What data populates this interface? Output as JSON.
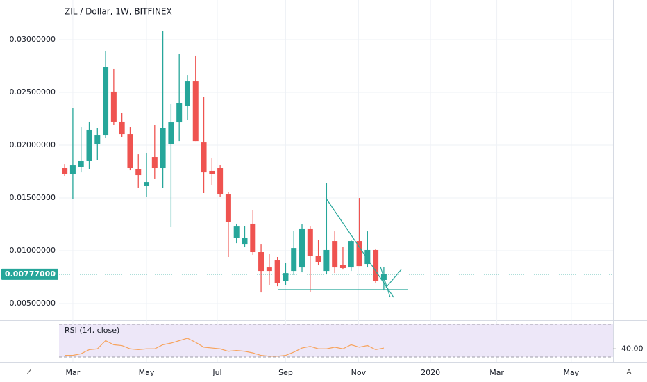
{
  "chart_data": {
    "type": "candlestick",
    "title": "ZIL / Dollar, 1W, BITFINEX",
    "up_color": "#26a69a",
    "down_color": "#ef5350",
    "grid": true,
    "xlim": [
      -7.9,
      67
    ],
    "xticks": [
      {
        "value": 1.0,
        "label": "Mar"
      },
      {
        "value": 10.0,
        "label": "May"
      },
      {
        "value": 18.65,
        "label": "Jul"
      },
      {
        "value": 27.0,
        "label": "Sep"
      },
      {
        "value": 35.9,
        "label": "Nov"
      },
      {
        "value": 44.7,
        "label": "2020"
      },
      {
        "value": 52.8,
        "label": "Mar"
      },
      {
        "value": 61.9,
        "label": "May"
      }
    ],
    "ylim": [
      0.00349,
      0.03375
    ],
    "yticks": [
      {
        "value": 0.005,
        "label": "0.00500000"
      },
      {
        "value": 0.01,
        "label": "0.01000000"
      },
      {
        "value": 0.015,
        "label": "0.01500000"
      },
      {
        "value": 0.02,
        "label": "0.02000000"
      },
      {
        "value": 0.025,
        "label": "0.02500000"
      },
      {
        "value": 0.03,
        "label": "0.03000000"
      }
    ],
    "last_price": {
      "value": 0.00777,
      "label": "0.00777000"
    },
    "open": [
      0.01783,
      0.0173,
      0.01796,
      0.01849,
      0.02007,
      0.02092,
      0.02507,
      0.02224,
      0.02105,
      0.0177,
      0.01612,
      0.01888,
      0.01783,
      0.02007,
      0.02217,
      0.02375,
      0.02605,
      0.02026,
      0.01757,
      0.01783,
      0.01533,
      0.01125,
      0.01059,
      0.01257,
      0.00987,
      0.00842,
      0.00908,
      0.00717,
      0.00809,
      0.00842,
      0.01211,
      0.00954,
      0.00809,
      0.01092,
      0.00868,
      0.00842,
      0.01092,
      0.00875,
      0.01007,
      0.00724
    ],
    "high": [
      0.01822,
      0.02355,
      0.02171,
      0.02224,
      0.02158,
      0.02895,
      0.02724,
      0.02303,
      0.02171,
      0.01914,
      0.01928,
      0.02191,
      0.03079,
      0.02388,
      0.02862,
      0.02664,
      0.02849,
      0.02454,
      0.01875,
      0.01809,
      0.01559,
      0.01257,
      0.01237,
      0.01388,
      0.01059,
      0.00974,
      0.00941,
      0.00888,
      0.01191,
      0.0125,
      0.0123,
      0.01105,
      0.01645,
      0.01184,
      0.01039,
      0.01105,
      0.015,
      0.01184,
      0.0102,
      0.00849
    ],
    "low": [
      0.01704,
      0.01487,
      0.01743,
      0.01776,
      0.01862,
      0.02072,
      0.02191,
      0.02079,
      0.01763,
      0.01599,
      0.01513,
      0.01678,
      0.01599,
      0.01224,
      0.02039,
      0.02237,
      0.02039,
      0.01546,
      0.01625,
      0.01513,
      0.00941,
      0.01072,
      0.01033,
      0.00961,
      0.00605,
      0.00678,
      0.00664,
      0.00678,
      0.0077,
      0.00796,
      0.00612,
      0.00862,
      0.00776,
      0.00789,
      0.00822,
      0.00809,
      0.00855,
      0.00842,
      0.00697,
      0.00625
    ],
    "close": [
      0.0173,
      0.01809,
      0.01849,
      0.02145,
      0.02092,
      0.02737,
      0.02224,
      0.02105,
      0.01783,
      0.01717,
      0.01651,
      0.01783,
      0.02158,
      0.02217,
      0.02401,
      0.02605,
      0.02039,
      0.01743,
      0.0173,
      0.01533,
      0.0127,
      0.0123,
      0.01125,
      0.00987,
      0.00809,
      0.00809,
      0.00697,
      0.00789,
      0.01026,
      0.01211,
      0.00954,
      0.00895,
      0.01007,
      0.00842,
      0.00836,
      0.01092,
      0.00855,
      0.01007,
      0.00717,
      0.00777
    ],
    "rsi": {
      "label": "RSI (14, close)",
      "color": "#f7a35c",
      "band_color": "#ede7f8",
      "ylim": [
        30,
        70
      ],
      "yticks": [
        {
          "value": 40,
          "label": "40.00"
        }
      ],
      "values": [
        32,
        32,
        34,
        39,
        40,
        50,
        45,
        44,
        40,
        39,
        40,
        40,
        45,
        47,
        50,
        53,
        48,
        42,
        41,
        40,
        37,
        38,
        37,
        35,
        32,
        31,
        31,
        32,
        36,
        41,
        43,
        40,
        40,
        42,
        40,
        45,
        42,
        44,
        39,
        41
      ]
    }
  },
  "toolbar": {
    "left": "Z",
    "right": "A"
  }
}
